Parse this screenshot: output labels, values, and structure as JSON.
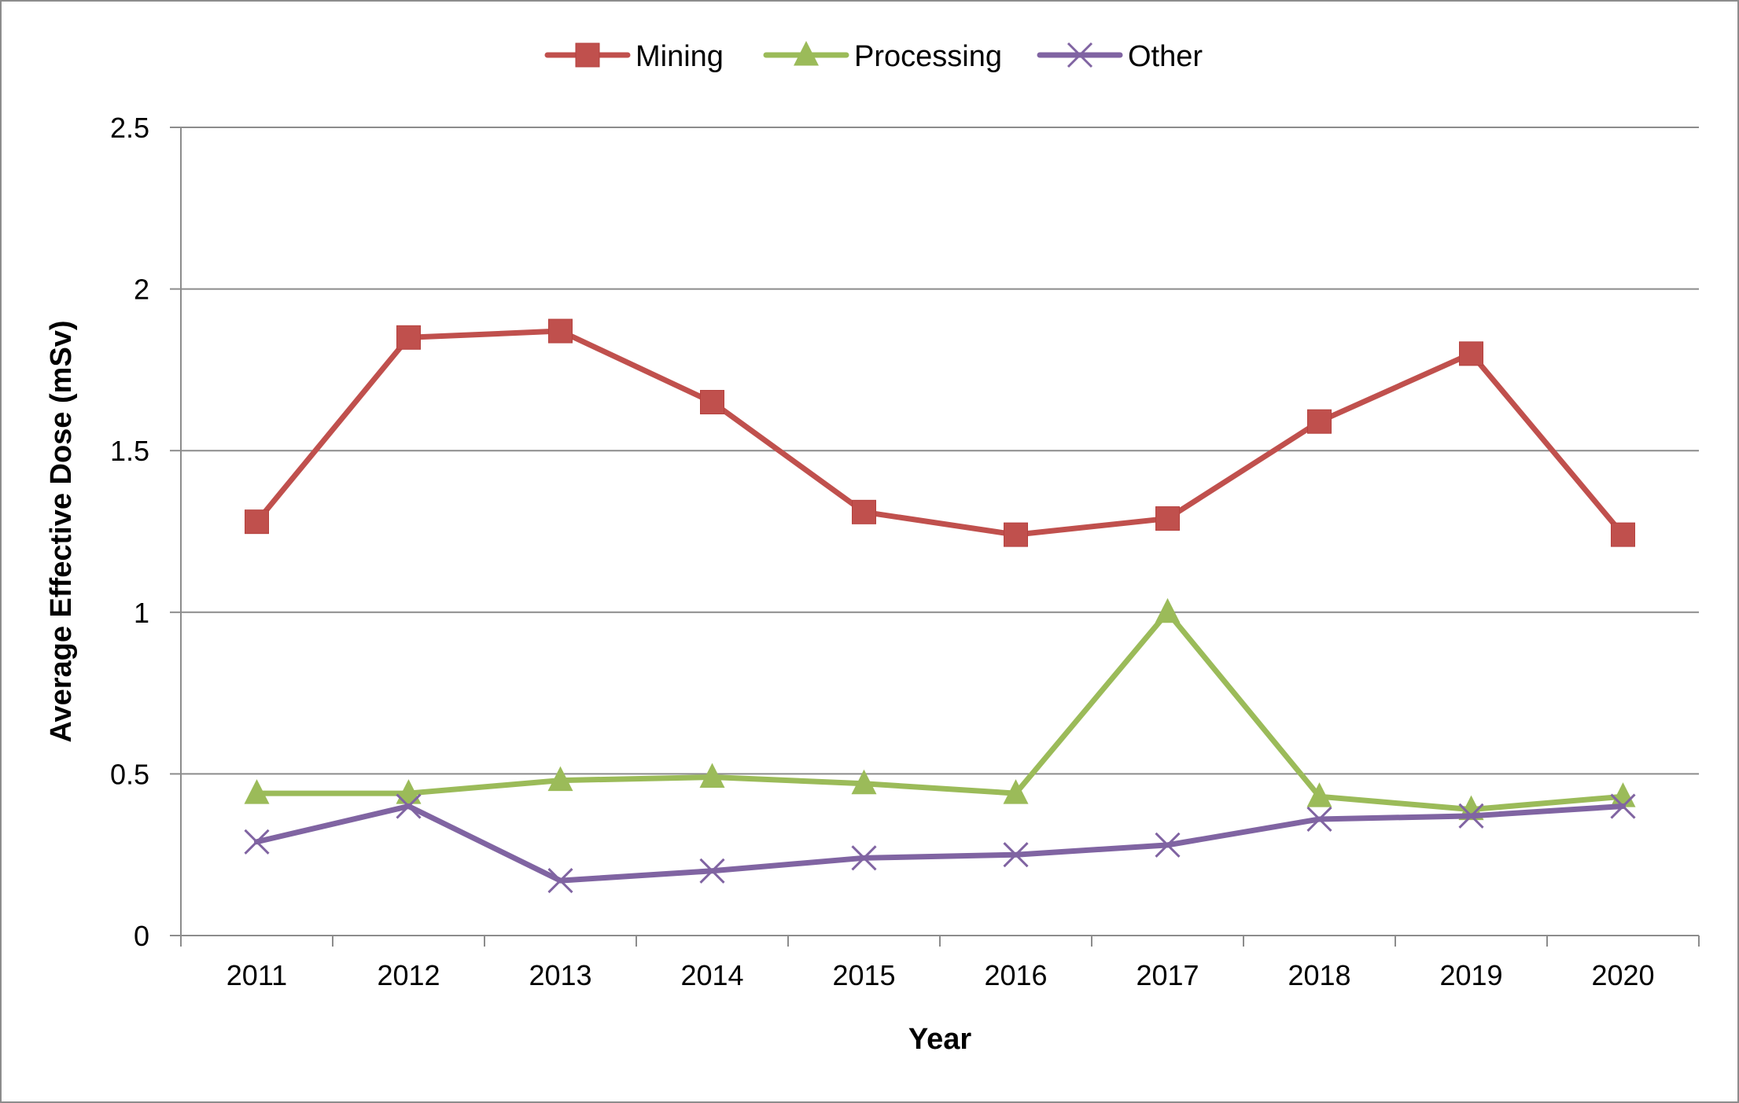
{
  "chart_data": {
    "type": "line",
    "title": "",
    "xlabel": "Year",
    "ylabel": "Average Effective Dose (mSv)",
    "categories": [
      "2011",
      "2012",
      "2013",
      "2014",
      "2015",
      "2016",
      "2017",
      "2018",
      "2019",
      "2020"
    ],
    "ylim": [
      0,
      2.5
    ],
    "yticks": [
      0,
      0.5,
      1,
      1.5,
      2,
      2.5
    ],
    "ytick_labels": [
      "0",
      "0.5",
      "1",
      "1.5",
      "2",
      "2.5"
    ],
    "grid": true,
    "legend_position": "top",
    "series": [
      {
        "name": "Mining",
        "marker": "square",
        "color": "#c0504d",
        "values": [
          1.28,
          1.85,
          1.87,
          1.65,
          1.31,
          1.24,
          1.29,
          1.59,
          1.8,
          1.24
        ]
      },
      {
        "name": "Processing",
        "marker": "triangle",
        "color": "#9bbb59",
        "values": [
          0.44,
          0.44,
          0.48,
          0.49,
          0.47,
          0.44,
          1.0,
          0.43,
          0.39,
          0.43
        ]
      },
      {
        "name": "Other",
        "marker": "x",
        "color": "#8064a2",
        "values": [
          0.29,
          0.4,
          0.17,
          0.2,
          0.24,
          0.25,
          0.28,
          0.36,
          0.37,
          0.4
        ]
      }
    ]
  },
  "colors": {
    "gridline": "#8c8c8c",
    "axis": "#8c8c8c",
    "background": "#ffffff"
  }
}
